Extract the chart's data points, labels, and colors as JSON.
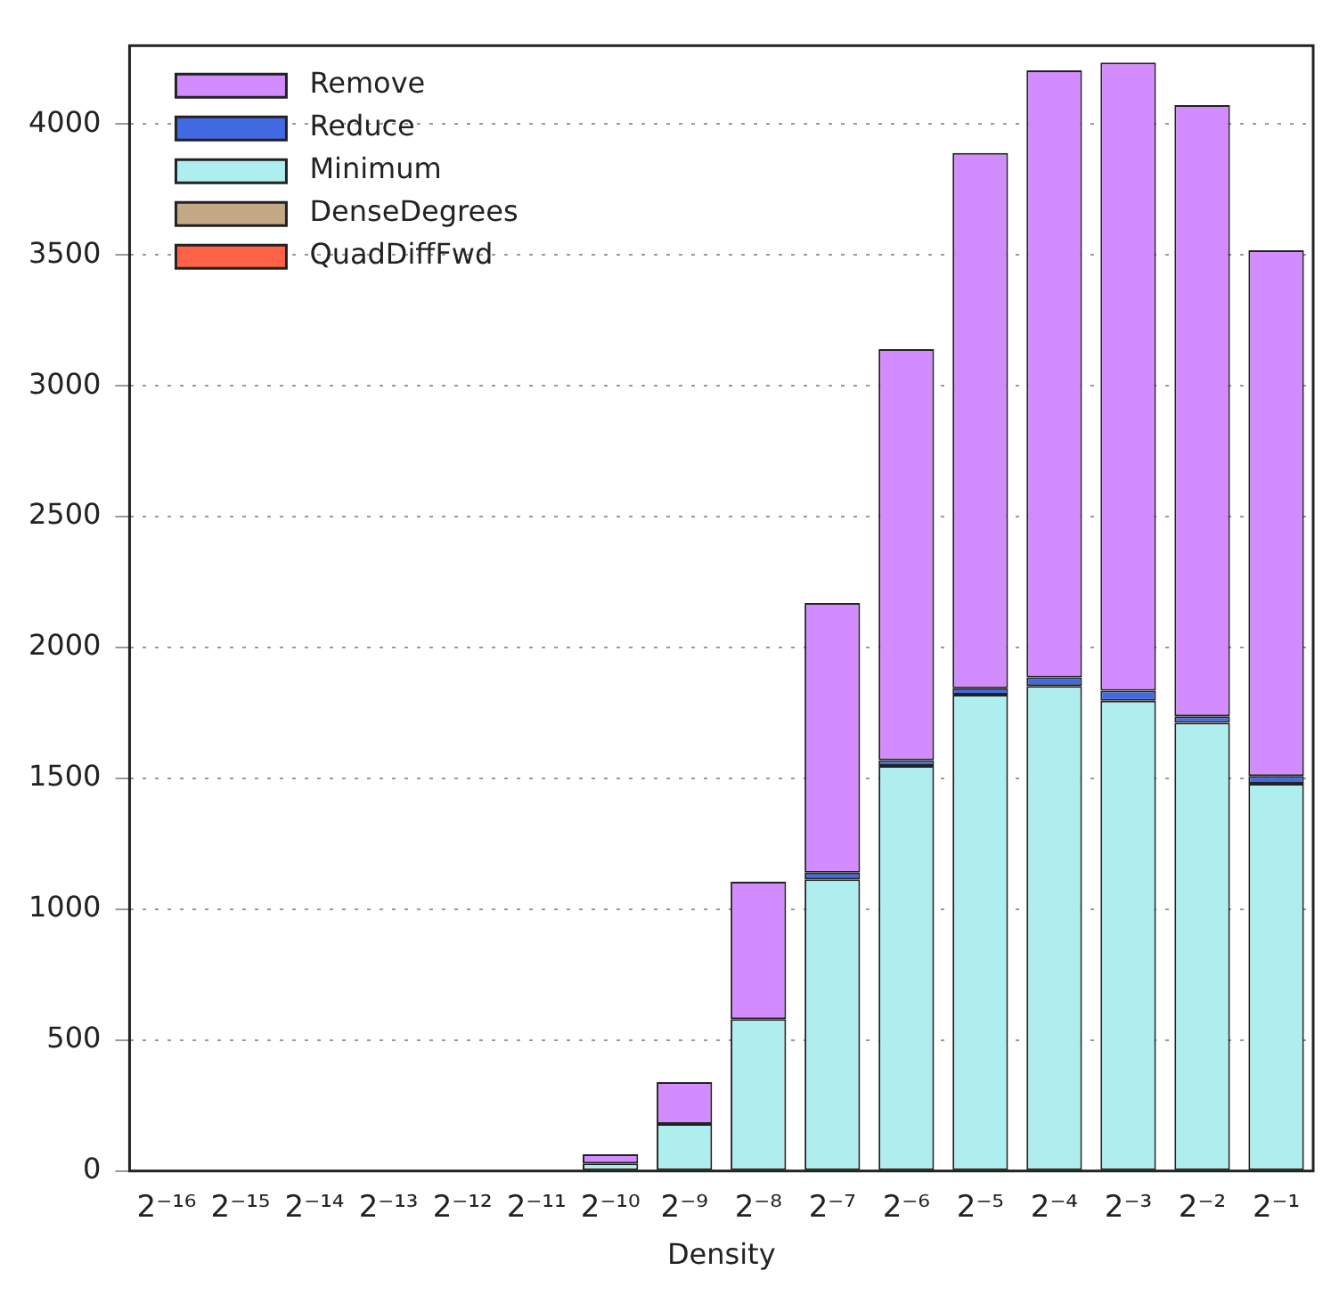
{
  "chart_data": {
    "type": "bar",
    "xlabel": "Density",
    "stacked": true,
    "legend": "top left",
    "grid": "y",
    "categories": [
      "2⁻¹⁶",
      "2⁻¹⁵",
      "2⁻¹⁴",
      "2⁻¹³",
      "2⁻¹²",
      "2⁻¹¹",
      "2⁻¹⁰",
      "2⁻⁹",
      "2⁻⁸",
      "2⁻⁷",
      "2⁻⁶",
      "2⁻⁵",
      "2⁻⁴",
      "2⁻³",
      "2⁻²",
      "2⁻¹"
    ],
    "ylim": [
      0,
      4300
    ],
    "yticks": [
      0,
      500,
      1000,
      1500,
      2000,
      2500,
      3000,
      3500,
      4000
    ],
    "series": [
      {
        "name": "QuadDiffFwd",
        "color": "#ff6347",
        "values": [
          null,
          null,
          null,
          null,
          null,
          null,
          null,
          null,
          null,
          null,
          null,
          null,
          null,
          null,
          null,
          null
        ]
      },
      {
        "name": "DenseDegrees",
        "color": "#c4a885",
        "values": [
          null,
          null,
          null,
          null,
          null,
          null,
          null,
          null,
          null,
          null,
          null,
          null,
          null,
          null,
          null,
          null
        ]
      },
      {
        "name": "Minimum",
        "color": "#afeeee",
        "values": [
          null,
          null,
          null,
          null,
          null,
          null,
          29,
          180,
          580,
          1115,
          1548,
          1820,
          1853,
          1797,
          1713,
          1480
        ]
      },
      {
        "name": "Reduce",
        "color": "#4169e1",
        "values": [
          null,
          null,
          null,
          null,
          null,
          null,
          null,
          null,
          null,
          25,
          22,
          25,
          33,
          38,
          24,
          29
        ]
      },
      {
        "name": "Remove",
        "color": "#d28cff",
        "values": [
          null,
          null,
          null,
          null,
          null,
          null,
          35,
          160,
          525,
          1030,
          1570,
          2045,
          2319,
          2400,
          2336,
          2009
        ]
      }
    ]
  }
}
